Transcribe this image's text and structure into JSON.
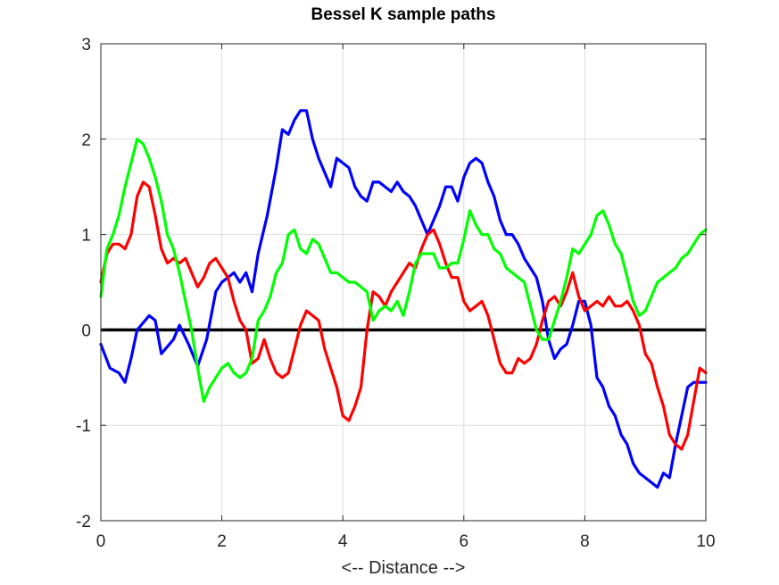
{
  "chart_data": {
    "type": "line",
    "title": "Bessel K sample paths",
    "xlabel": "<-- Distance -->",
    "ylabel": "",
    "xlim": [
      0,
      10
    ],
    "ylim": [
      -2,
      3
    ],
    "xticks": [
      "0",
      "2",
      "4",
      "6",
      "8",
      "10"
    ],
    "yticks": [
      "-2",
      "-1",
      "0",
      "1",
      "2",
      "3"
    ],
    "grid": true,
    "reference_line": {
      "y": 0,
      "color": "#000000"
    },
    "series": [
      {
        "color": "#0000ff",
        "x": [
          0,
          0.15,
          0.3,
          0.4,
          0.5,
          0.6,
          0.8,
          0.9,
          1.0,
          1.2,
          1.3,
          1.45,
          1.6,
          1.75,
          1.9,
          2.0,
          2.1,
          2.2,
          2.3,
          2.4,
          2.5,
          2.6,
          2.75,
          2.9,
          3.0,
          3.1,
          3.2,
          3.3,
          3.4,
          3.5,
          3.6,
          3.7,
          3.8,
          3.9,
          4.0,
          4.1,
          4.2,
          4.3,
          4.4,
          4.5,
          4.6,
          4.7,
          4.8,
          4.9,
          5.0,
          5.1,
          5.2,
          5.3,
          5.4,
          5.5,
          5.6,
          5.7,
          5.8,
          5.9,
          6.0,
          6.1,
          6.2,
          6.3,
          6.4,
          6.5,
          6.6,
          6.7,
          6.8,
          6.9,
          7.0,
          7.1,
          7.2,
          7.3,
          7.4,
          7.5,
          7.6,
          7.7,
          7.8,
          7.9,
          8.0,
          8.1,
          8.2,
          8.3,
          8.4,
          8.5,
          8.6,
          8.7,
          8.8,
          8.9,
          9.0,
          9.1,
          9.2,
          9.3,
          9.4,
          9.5,
          9.6,
          9.7,
          9.8,
          9.9,
          10.0
        ],
        "y": [
          -0.15,
          -0.4,
          -0.45,
          -0.55,
          -0.3,
          0.0,
          0.15,
          0.1,
          -0.25,
          -0.1,
          0.05,
          -0.15,
          -0.38,
          -0.1,
          0.4,
          0.5,
          0.55,
          0.6,
          0.5,
          0.6,
          0.4,
          0.8,
          1.2,
          1.7,
          2.1,
          2.05,
          2.2,
          2.3,
          2.3,
          2.0,
          1.8,
          1.65,
          1.5,
          1.8,
          1.75,
          1.7,
          1.5,
          1.4,
          1.35,
          1.55,
          1.55,
          1.5,
          1.45,
          1.55,
          1.45,
          1.4,
          1.3,
          1.15,
          1.0,
          1.15,
          1.3,
          1.5,
          1.5,
          1.35,
          1.6,
          1.75,
          1.8,
          1.75,
          1.55,
          1.4,
          1.15,
          1.0,
          1.0,
          0.9,
          0.75,
          0.65,
          0.55,
          0.3,
          -0.1,
          -0.3,
          -0.2,
          -0.15,
          0.05,
          0.3,
          0.3,
          0.05,
          -0.5,
          -0.6,
          -0.8,
          -0.9,
          -1.1,
          -1.2,
          -1.4,
          -1.5,
          -1.55,
          -1.6,
          -1.65,
          -1.5,
          -1.55,
          -1.2,
          -0.9,
          -0.6,
          -0.55,
          -0.55,
          -0.55
        ]
      },
      {
        "color": "#ff0000",
        "x": [
          0,
          0.1,
          0.2,
          0.3,
          0.4,
          0.5,
          0.6,
          0.7,
          0.8,
          0.9,
          1.0,
          1.1,
          1.2,
          1.3,
          1.4,
          1.5,
          1.6,
          1.7,
          1.8,
          1.9,
          2.0,
          2.1,
          2.2,
          2.3,
          2.4,
          2.5,
          2.6,
          2.7,
          2.8,
          2.9,
          3.0,
          3.1,
          3.2,
          3.3,
          3.4,
          3.5,
          3.6,
          3.7,
          3.8,
          3.9,
          4.0,
          4.1,
          4.2,
          4.3,
          4.4,
          4.5,
          4.6,
          4.7,
          4.8,
          4.9,
          5.0,
          5.1,
          5.2,
          5.3,
          5.4,
          5.5,
          5.6,
          5.7,
          5.8,
          5.9,
          6.0,
          6.1,
          6.2,
          6.3,
          6.4,
          6.5,
          6.6,
          6.7,
          6.8,
          6.9,
          7.0,
          7.1,
          7.2,
          7.3,
          7.4,
          7.5,
          7.6,
          7.7,
          7.8,
          7.9,
          8.0,
          8.1,
          8.2,
          8.3,
          8.4,
          8.5,
          8.6,
          8.7,
          8.8,
          8.9,
          9.0,
          9.1,
          9.2,
          9.3,
          9.4,
          9.5,
          9.6,
          9.7,
          9.8,
          9.9,
          10.0
        ],
        "y": [
          0.5,
          0.8,
          0.9,
          0.9,
          0.85,
          1.0,
          1.4,
          1.55,
          1.5,
          1.2,
          0.85,
          0.7,
          0.75,
          0.7,
          0.75,
          0.6,
          0.45,
          0.55,
          0.7,
          0.75,
          0.65,
          0.55,
          0.3,
          0.1,
          0.0,
          -0.35,
          -0.3,
          -0.1,
          -0.3,
          -0.45,
          -0.5,
          -0.45,
          -0.2,
          0.05,
          0.2,
          0.15,
          0.1,
          -0.2,
          -0.4,
          -0.6,
          -0.9,
          -0.95,
          -0.8,
          -0.6,
          0.0,
          0.4,
          0.35,
          0.25,
          0.4,
          0.5,
          0.6,
          0.7,
          0.65,
          0.85,
          1.0,
          1.05,
          0.9,
          0.7,
          0.55,
          0.55,
          0.3,
          0.2,
          0.25,
          0.3,
          0.15,
          -0.1,
          -0.35,
          -0.45,
          -0.45,
          -0.3,
          -0.35,
          -0.3,
          -0.15,
          0.1,
          0.3,
          0.35,
          0.25,
          0.4,
          0.6,
          0.35,
          0.2,
          0.25,
          0.3,
          0.25,
          0.35,
          0.25,
          0.25,
          0.3,
          0.2,
          0.05,
          -0.25,
          -0.35,
          -0.6,
          -0.8,
          -1.1,
          -1.2,
          -1.25,
          -1.1,
          -0.75,
          -0.4,
          -0.45
        ]
      },
      {
        "color": "#00ff00",
        "x": [
          0,
          0.1,
          0.2,
          0.3,
          0.4,
          0.5,
          0.6,
          0.7,
          0.8,
          0.9,
          1.0,
          1.1,
          1.2,
          1.3,
          1.4,
          1.5,
          1.6,
          1.7,
          1.8,
          1.9,
          2.0,
          2.1,
          2.2,
          2.3,
          2.4,
          2.5,
          2.6,
          2.7,
          2.8,
          2.9,
          3.0,
          3.1,
          3.2,
          3.3,
          3.4,
          3.5,
          3.6,
          3.7,
          3.8,
          3.9,
          4.0,
          4.1,
          4.2,
          4.3,
          4.4,
          4.5,
          4.6,
          4.7,
          4.8,
          4.9,
          5.0,
          5.1,
          5.2,
          5.3,
          5.4,
          5.5,
          5.6,
          5.7,
          5.8,
          5.9,
          6.0,
          6.1,
          6.2,
          6.3,
          6.4,
          6.5,
          6.6,
          6.7,
          6.8,
          6.9,
          7.0,
          7.1,
          7.2,
          7.3,
          7.4,
          7.5,
          7.6,
          7.7,
          7.8,
          7.9,
          8.0,
          8.1,
          8.2,
          8.3,
          8.4,
          8.5,
          8.6,
          8.7,
          8.8,
          8.9,
          9.0,
          9.1,
          9.2,
          9.3,
          9.4,
          9.5,
          9.6,
          9.7,
          9.8,
          9.9,
          10.0
        ],
        "y": [
          0.35,
          0.85,
          1.0,
          1.2,
          1.5,
          1.75,
          2.0,
          1.95,
          1.8,
          1.6,
          1.35,
          1.0,
          0.85,
          0.6,
          0.3,
          0.0,
          -0.4,
          -0.75,
          -0.6,
          -0.5,
          -0.4,
          -0.35,
          -0.45,
          -0.5,
          -0.45,
          -0.3,
          0.1,
          0.2,
          0.35,
          0.6,
          0.7,
          1.0,
          1.05,
          0.85,
          0.8,
          0.95,
          0.9,
          0.75,
          0.6,
          0.6,
          0.55,
          0.5,
          0.5,
          0.45,
          0.4,
          0.1,
          0.2,
          0.25,
          0.2,
          0.3,
          0.15,
          0.4,
          0.7,
          0.8,
          0.8,
          0.8,
          0.65,
          0.65,
          0.7,
          0.7,
          0.95,
          1.25,
          1.1,
          1.0,
          1.0,
          0.85,
          0.8,
          0.65,
          0.6,
          0.55,
          0.5,
          0.25,
          0.0,
          -0.1,
          -0.1,
          0.1,
          0.3,
          0.55,
          0.85,
          0.8,
          0.9,
          1.0,
          1.2,
          1.25,
          1.1,
          0.9,
          0.8,
          0.55,
          0.3,
          0.15,
          0.2,
          0.35,
          0.5,
          0.55,
          0.6,
          0.65,
          0.75,
          0.8,
          0.9,
          1.0,
          1.05
        ]
      }
    ]
  }
}
